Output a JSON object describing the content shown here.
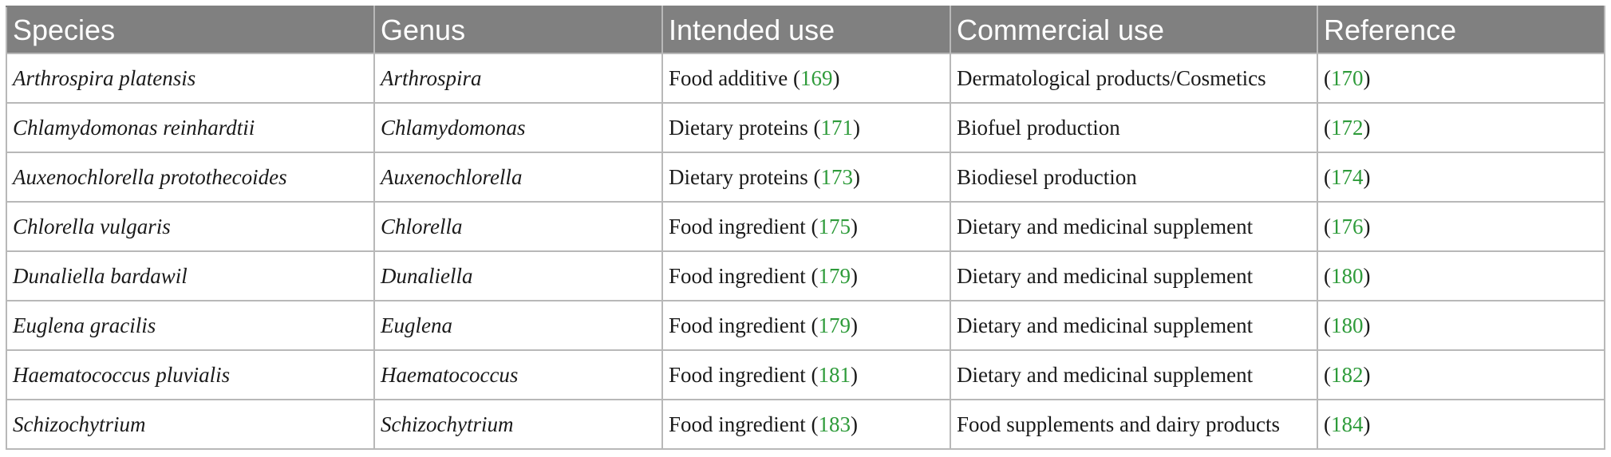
{
  "table": {
    "headers": [
      "Species",
      "Genus",
      "Intended use",
      "Commercial use",
      "Reference"
    ],
    "rows": [
      {
        "species": "Arthrospira platensis",
        "genus": "Arthrospira",
        "intended_use": "Food additive",
        "intended_ref": "169",
        "commercial_use": "Dermatological products/Cosmetics",
        "reference": "170"
      },
      {
        "species": "Chlamydomonas reinhardtii",
        "genus": "Chlamydomonas",
        "intended_use": "Dietary proteins",
        "intended_ref": "171",
        "commercial_use": "Biofuel production",
        "reference": "172"
      },
      {
        "species": "Auxenochlorella protothecoides",
        "genus": "Auxenochlorella",
        "intended_use": "Dietary proteins",
        "intended_ref": "173",
        "commercial_use": "Biodiesel production",
        "reference": "174"
      },
      {
        "species": "Chlorella vulgaris",
        "genus": "Chlorella",
        "intended_use": "Food ingredient",
        "intended_ref": "175",
        "commercial_use": "Dietary and medicinal supplement",
        "reference": "176"
      },
      {
        "species": "Dunaliella bardawil",
        "genus": "Dunaliella",
        "intended_use": "Food ingredient",
        "intended_ref": "179",
        "commercial_use": "Dietary and medicinal supplement",
        "reference": "180"
      },
      {
        "species": "Euglena gracilis",
        "genus": "Euglena",
        "intended_use": "Food ingredient",
        "intended_ref": "179",
        "commercial_use": "Dietary and medicinal supplement",
        "reference": "180"
      },
      {
        "species": "Haematococcus pluvialis",
        "genus": "Haematococcus",
        "intended_use": "Food ingredient",
        "intended_ref": "181",
        "commercial_use": "Dietary and medicinal supplement",
        "reference": "182"
      },
      {
        "species": "Schizochytrium",
        "genus": "Schizochytrium",
        "intended_use": "Food ingredient",
        "intended_ref": "183",
        "commercial_use": "Food supplements and dairy products",
        "reference": "184"
      }
    ]
  }
}
